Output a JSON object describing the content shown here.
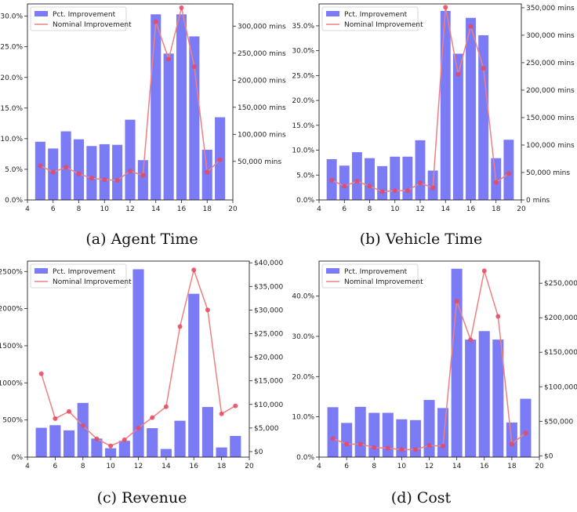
{
  "chart_data": [
    {
      "type": "bar",
      "caption": "(a) Agent Time",
      "x": [
        5,
        6,
        7,
        8,
        9,
        10,
        11,
        12,
        13,
        14,
        15,
        16,
        17,
        18,
        19
      ],
      "xlim": [
        4,
        20
      ],
      "x_ticks": [
        4,
        6,
        8,
        10,
        12,
        14,
        16,
        18,
        20
      ],
      "series": [
        {
          "name": "Pct. Improvement",
          "axis": "left",
          "kind": "bar",
          "values": [
            9.5,
            8.4,
            11.2,
            9.9,
            8.8,
            9.1,
            9.0,
            13.1,
            6.5,
            30.3,
            23.9,
            30.3,
            26.7,
            8.2,
            13.5
          ]
        },
        {
          "name": "Nominal Improvement",
          "axis": "right",
          "kind": "line",
          "values": [
            42000,
            30000,
            39000,
            27000,
            19000,
            16000,
            15000,
            32000,
            24000,
            308000,
            239000,
            334000,
            225000,
            30000,
            53000
          ]
        }
      ],
      "ylim_left": [
        0,
        32
      ],
      "yticks_left": [
        0,
        5,
        10,
        15,
        20,
        25,
        30
      ],
      "ylabels_left": [
        "0.0%",
        "5.0%",
        "10.0%",
        "15.0%",
        "20.0%",
        "25.0%",
        "30.0%"
      ],
      "ylim_right": [
        -21300,
        341000
      ],
      "yticks_right": [
        50000,
        100000,
        150000,
        200000,
        250000,
        300000
      ],
      "ylabels_right": [
        "50,000 mins",
        "100,000 mins",
        "150,000 mins",
        "200,000 mins",
        "250,000 mins",
        "300,000 mins"
      ],
      "legend": "upper-left",
      "grid": false
    },
    {
      "type": "bar",
      "caption": "(b) Vehicle Time",
      "x": [
        5,
        6,
        7,
        8,
        9,
        10,
        11,
        12,
        13,
        14,
        15,
        16,
        17,
        18,
        19
      ],
      "xlim": [
        4,
        20
      ],
      "x_ticks": [
        4,
        6,
        8,
        10,
        12,
        14,
        16,
        18,
        20
      ],
      "series": [
        {
          "name": "Pct. Improvement",
          "axis": "left",
          "kind": "bar",
          "values": [
            8.2,
            6.9,
            9.6,
            8.4,
            6.8,
            8.7,
            8.7,
            12.0,
            5.9,
            38.0,
            29.4,
            36.6,
            33.1,
            8.4,
            12.1
          ]
        },
        {
          "name": "Nominal Improvement",
          "axis": "right",
          "kind": "line",
          "values": [
            36000,
            25000,
            34000,
            25000,
            15000,
            17000,
            17000,
            31000,
            22000,
            351000,
            229000,
            316000,
            240000,
            32000,
            48000
          ]
        }
      ],
      "ylim_left": [
        0,
        39.4
      ],
      "yticks_left": [
        0,
        5,
        10,
        15,
        20,
        25,
        30,
        35
      ],
      "ylabels_left": [
        "0.0%",
        "5.0%",
        "10.0%",
        "15.0%",
        "20.0%",
        "25.0%",
        "30.0%",
        "35.0%"
      ],
      "ylim_right": [
        0,
        357000
      ],
      "yticks_right": [
        0,
        50000,
        100000,
        150000,
        200000,
        250000,
        300000,
        350000
      ],
      "ylabels_right": [
        "0 mins",
        "50,000 mins",
        "100,000 mins",
        "150,000 mins",
        "200,000 mins",
        "250,000 mins",
        "300,000 mins",
        "350,000 mins"
      ],
      "legend": "upper-left",
      "grid": false
    },
    {
      "type": "bar",
      "caption": "(c) Revenue",
      "x": [
        5,
        6,
        7,
        8,
        9,
        10,
        11,
        12,
        13,
        14,
        15,
        16,
        17,
        18,
        19
      ],
      "xlim": [
        4,
        20
      ],
      "x_ticks": [
        4,
        6,
        8,
        10,
        12,
        14,
        16,
        18,
        20
      ],
      "series": [
        {
          "name": "Pct. Improvement",
          "axis": "left",
          "kind": "bar",
          "values": [
            395,
            430,
            360,
            730,
            250,
            120,
            220,
            2530,
            390,
            110,
            490,
            2200,
            675,
            130,
            285
          ]
        },
        {
          "name": "Nominal Improvement",
          "axis": "right",
          "kind": "line",
          "values": [
            16500,
            7000,
            8500,
            5500,
            2700,
            1200,
            2500,
            5000,
            7200,
            9500,
            26500,
            38500,
            30000,
            8000,
            9700
          ]
        }
      ],
      "ylim_left": [
        0,
        2640
      ],
      "yticks_left": [
        0,
        500,
        1000,
        1500,
        2000,
        2500
      ],
      "ylabels_left": [
        "0%",
        "500%",
        "1000%",
        "1500%",
        "2000%",
        "2500%"
      ],
      "ylim_right": [
        -1170,
        40370
      ],
      "yticks_right": [
        0,
        5000,
        10000,
        15000,
        20000,
        25000,
        30000,
        35000,
        40000
      ],
      "ylabels_right": [
        "$0",
        "$5,000",
        "$10,000",
        "$15,000",
        "$20,000",
        "$25,000",
        "$30,000",
        "$35,000",
        "$40,000"
      ],
      "legend": "upper-left",
      "grid": false
    },
    {
      "type": "bar",
      "caption": "(d) Cost",
      "x": [
        5,
        6,
        7,
        8,
        9,
        10,
        11,
        12,
        13,
        14,
        15,
        16,
        17,
        18,
        19
      ],
      "xlim": [
        4,
        20
      ],
      "x_ticks": [
        4,
        6,
        8,
        10,
        12,
        14,
        16,
        18,
        20
      ],
      "series": [
        {
          "name": "Pct. Improvement",
          "axis": "left",
          "kind": "bar",
          "values": [
            12.4,
            8.5,
            12.5,
            11.0,
            11.0,
            9.4,
            9.2,
            14.2,
            12.2,
            46.8,
            29.2,
            31.3,
            29.2,
            8.6,
            14.5
          ]
        },
        {
          "name": "Nominal Improvement",
          "axis": "right",
          "kind": "line",
          "values": [
            25000,
            17000,
            17000,
            12000,
            11000,
            9000,
            9000,
            15000,
            14000,
            224000,
            168000,
            268000,
            202000,
            17000,
            33000
          ]
        }
      ],
      "ylim_left": [
        0,
        48.7
      ],
      "yticks_left": [
        0,
        10,
        20,
        30,
        40
      ],
      "ylabels_left": [
        "0.0%",
        "10.0%",
        "20.0%",
        "30.0%",
        "40.0%"
      ],
      "ylim_right": [
        -1900,
        282000
      ],
      "yticks_right": [
        0,
        50000,
        100000,
        150000,
        200000,
        250000
      ],
      "ylabels_right": [
        "$0",
        "$50,000",
        "$100,000",
        "$150,000",
        "$200,000",
        "$250,000"
      ],
      "legend": "upper-left",
      "grid": false
    }
  ],
  "colors": {
    "bar": "#7b7bf5",
    "line": "#f08080",
    "marker": "#e8475f",
    "axis": "#222222"
  }
}
